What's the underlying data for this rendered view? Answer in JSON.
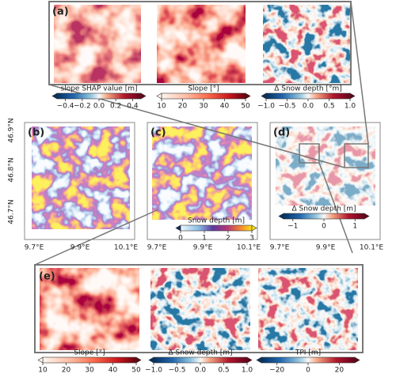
{
  "panels": [
    "(a)",
    "(b)",
    "(c)",
    "(d)",
    "(e)"
  ],
  "lat_labels": [
    "46.9°N",
    "46.8°N",
    "46.7°N"
  ],
  "lon_labels": [
    "9.7°E",
    "9.9°E",
    "10.1°E"
  ],
  "colorbars": [
    {
      "label": "slope SHAP value [m]",
      "lim": [
        -0.5,
        0.5
      ],
      "ticks": [
        {
          "value": -0.4,
          "label": "−0.4"
        },
        {
          "value": -0.2,
          "label": "−0.2"
        },
        {
          "value": 0.0,
          "label": "0.0"
        },
        {
          "value": 0.2,
          "label": "0.2"
        },
        {
          "value": 0.4,
          "label": "0.4"
        }
      ]
    },
    {
      "label": "Slope [°]",
      "lim": [
        10,
        50
      ],
      "ticks": [
        10,
        20,
        30,
        40,
        50
      ]
    },
    {
      "label": "Δ Snow depth [°m]",
      "lim": [
        -1,
        1
      ],
      "ticks": [
        {
          "value": -1.0,
          "label": "−1.0"
        },
        {
          "value": -0.5,
          "label": "−0.5"
        },
        {
          "value": 0.0,
          "label": "0.0"
        },
        {
          "value": 0.5,
          "label": "0.5"
        },
        {
          "value": 1.0,
          "label": "1.0"
        }
      ]
    },
    {
      "label": "Snow depth [m]",
      "lim": [
        0,
        3
      ],
      "ticks": [
        0,
        1,
        2,
        3
      ]
    },
    {
      "label": "Δ Snow depth [m]",
      "lim": [
        -1.3,
        1.3
      ],
      "ticks": [
        {
          "value": -1,
          "label": "−1"
        },
        0,
        1
      ]
    },
    {
      "label": "Slope [°]",
      "lim": [
        10,
        50
      ],
      "ticks": [
        10,
        20,
        30,
        40,
        50
      ]
    },
    {
      "label": "Δ Snow depth [m]",
      "lim": [
        -1,
        1
      ],
      "ticks": [
        {
          "value": -1.0,
          "label": "−1.0"
        },
        {
          "value": -0.5,
          "label": "−0.5"
        },
        {
          "value": 0.0,
          "label": "0.0"
        },
        {
          "value": 0.5,
          "label": "0.5"
        },
        {
          "value": 1.0,
          "label": "1.0"
        }
      ]
    },
    {
      "label": "TPI [m]",
      "lim": [
        -30,
        30
      ],
      "ticks": [
        {
          "value": -20,
          "label": "−20"
        },
        0,
        20
      ]
    }
  ]
}
